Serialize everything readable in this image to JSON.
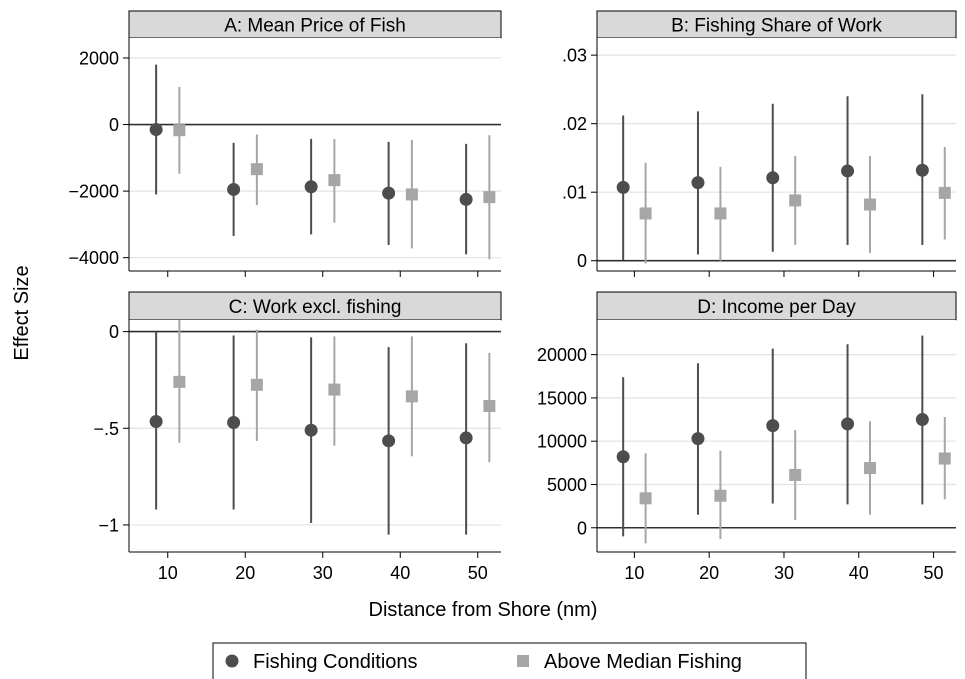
{
  "figure": {
    "ylabel": "Effect Size",
    "xlabel": "Distance from Shore (nm)",
    "legend": {
      "placement": "bottom-center",
      "entries": [
        {
          "label": "Fishing Conditions",
          "marker": "circle",
          "color": "#4d4d4d"
        },
        {
          "label": "Above Median Fishing",
          "marker": "square",
          "color": "#a6a6a6"
        }
      ]
    },
    "colors": {
      "series1": "#4d4d4d",
      "series2": "#a6a6a6",
      "header_bg": "#d9d9d9",
      "grid": "#e3e3e3",
      "zero_line": "#303030"
    }
  },
  "chart_data": [
    {
      "type": "scatter",
      "title": "A: Mean Price of Fish",
      "xlim": [
        5,
        53
      ],
      "ylim": [
        -4400,
        2600
      ],
      "yticks": [
        2000,
        0,
        -2000,
        -4000
      ],
      "ytick_labels": [
        "2000",
        "0",
        "−2000",
        "−4000"
      ],
      "xticks": [
        10,
        20,
        30,
        40,
        50
      ],
      "xtick_labels": [
        "10",
        "20",
        "30",
        "40",
        "50"
      ],
      "show_xtick_labels": false,
      "zero_line": 0,
      "grid": true,
      "series": [
        {
          "name": "Fishing Conditions",
          "x": [
            8.5,
            18.5,
            28.5,
            38.5,
            48.5
          ],
          "values": [
            -150,
            -1950,
            -1870,
            -2060,
            -2250
          ],
          "lower": [
            -2100,
            -3350,
            -3300,
            -3620,
            -3900
          ],
          "upper": [
            1800,
            -550,
            -430,
            -520,
            -580
          ]
        },
        {
          "name": "Above Median Fishing",
          "x": [
            11.5,
            21.5,
            31.5,
            41.5,
            51.5
          ],
          "values": [
            -170,
            -1340,
            -1670,
            -2100,
            -2180
          ],
          "lower": [
            -1480,
            -2420,
            -2950,
            -3720,
            -4050
          ],
          "upper": [
            1130,
            -300,
            -430,
            -460,
            -320
          ]
        }
      ]
    },
    {
      "type": "scatter",
      "title": "B: Fishing Share of Work",
      "xlim": [
        5,
        53
      ],
      "ylim": [
        -0.0015,
        0.0325
      ],
      "yticks": [
        0.03,
        0.02,
        0.01,
        0
      ],
      "ytick_labels": [
        ".03",
        ".02",
        ".01",
        "0"
      ],
      "xticks": [
        10,
        20,
        30,
        40,
        50
      ],
      "xtick_labels": [
        "10",
        "20",
        "30",
        "40",
        "50"
      ],
      "show_xtick_labels": false,
      "zero_line": 0,
      "grid": true,
      "series": [
        {
          "name": "Fishing Conditions",
          "x": [
            8.5,
            18.5,
            28.5,
            38.5,
            48.5
          ],
          "values": [
            0.0107,
            0.0114,
            0.0121,
            0.0131,
            0.0132
          ],
          "lower": [
            0.0001,
            0.0009,
            0.0013,
            0.0023,
            0.0023
          ],
          "upper": [
            0.0212,
            0.0218,
            0.0229,
            0.024,
            0.0243
          ]
        },
        {
          "name": "Above Median Fishing",
          "x": [
            11.5,
            21.5,
            31.5,
            41.5,
            51.5
          ],
          "values": [
            0.0069,
            0.0069,
            0.0088,
            0.0082,
            0.0099
          ],
          "lower": [
            -0.0004,
            0.0,
            0.0023,
            0.0011,
            0.0031
          ],
          "upper": [
            0.0143,
            0.0137,
            0.0153,
            0.0153,
            0.0166
          ]
        }
      ]
    },
    {
      "type": "scatter",
      "title": "C: Work excl. fishing",
      "xlim": [
        5,
        53
      ],
      "ylim": [
        -1.14,
        0.06
      ],
      "yticks": [
        0,
        -0.5,
        -1
      ],
      "ytick_labels": [
        "0",
        "−.5",
        "−1"
      ],
      "xticks": [
        10,
        20,
        30,
        40,
        50
      ],
      "xtick_labels": [
        "10",
        "20",
        "30",
        "40",
        "50"
      ],
      "show_xtick_labels": true,
      "zero_line": 0,
      "grid": true,
      "series": [
        {
          "name": "Fishing Conditions",
          "x": [
            8.5,
            18.5,
            28.5,
            38.5,
            48.5
          ],
          "values": [
            -0.465,
            -0.47,
            -0.51,
            -0.565,
            -0.55
          ],
          "lower": [
            -0.92,
            -0.92,
            -0.99,
            -1.05,
            -1.05
          ],
          "upper": [
            0.0,
            -0.02,
            -0.03,
            -0.08,
            -0.06
          ]
        },
        {
          "name": "Above Median Fishing",
          "x": [
            11.5,
            21.5,
            31.5,
            41.5,
            51.5
          ],
          "values": [
            -0.26,
            -0.275,
            -0.3,
            -0.335,
            -0.385
          ],
          "lower": [
            -0.575,
            -0.565,
            -0.59,
            -0.645,
            -0.675
          ],
          "upper": [
            0.06,
            0.01,
            -0.025,
            -0.025,
            -0.11
          ]
        }
      ]
    },
    {
      "type": "scatter",
      "title": "D: Income per Day",
      "xlim": [
        5,
        53
      ],
      "ylim": [
        -2800,
        24000
      ],
      "yticks": [
        20000,
        15000,
        10000,
        5000,
        0
      ],
      "ytick_labels": [
        "20000",
        "15000",
        "10000",
        "5000",
        "0"
      ],
      "xticks": [
        10,
        20,
        30,
        40,
        50
      ],
      "xtick_labels": [
        "10",
        "20",
        "30",
        "40",
        "50"
      ],
      "show_xtick_labels": true,
      "zero_line": 0,
      "grid": true,
      "series": [
        {
          "name": "Fishing Conditions",
          "x": [
            8.5,
            18.5,
            28.5,
            38.5,
            48.5
          ],
          "values": [
            8200,
            10300,
            11800,
            12000,
            12500
          ],
          "lower": [
            -1000,
            1500,
            2800,
            2700,
            2700
          ],
          "upper": [
            17400,
            19000,
            20700,
            21200,
            22200
          ]
        },
        {
          "name": "Above Median Fishing",
          "x": [
            11.5,
            21.5,
            31.5,
            41.5,
            51.5
          ],
          "values": [
            3400,
            3700,
            6100,
            6900,
            8000
          ],
          "lower": [
            -1800,
            -1300,
            900,
            1500,
            3300
          ],
          "upper": [
            8600,
            8900,
            11300,
            12300,
            12800
          ]
        }
      ]
    }
  ]
}
